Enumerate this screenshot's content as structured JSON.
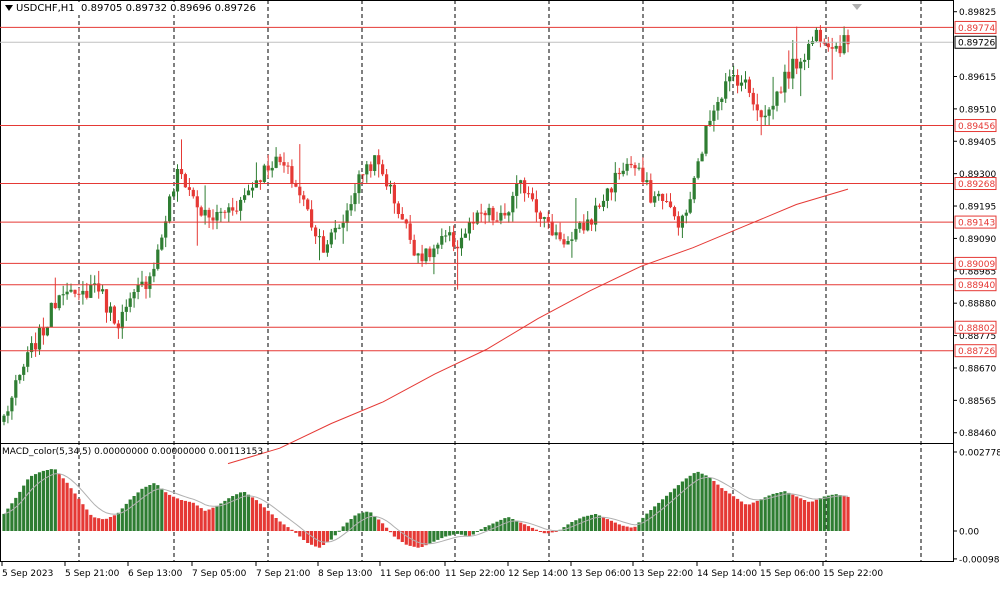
{
  "header": {
    "symbol_label": "USDCHF,H1",
    "ohlc": "0.89705 0.89732 0.89696 0.89726"
  },
  "macd": {
    "label": "MACD_color(5,34,5) 0.00000000 0.00000000 0.00113153"
  },
  "colors": {
    "bull": "#2e7d32",
    "bear": "#e53935",
    "level": "#e53935",
    "ma": "#e53935",
    "grid": "#000000",
    "signal": "#b0b0b0"
  },
  "price_scale": {
    "ticks": [
      "0.89825",
      "0.89615",
      "0.89510",
      "0.89405",
      "0.89300",
      "0.89195",
      "0.89090",
      "0.88985",
      "0.88880",
      "0.88775",
      "0.88670",
      "0.88565",
      "0.88460"
    ],
    "current_price": "0.89726"
  },
  "macd_scale": {
    "ticks": [
      "0.00277853",
      "0.00",
      "-0.00098104"
    ]
  },
  "levels": [
    "0.89774",
    "0.89456",
    "0.89268",
    "0.89143",
    "0.89009",
    "0.88940",
    "0.88802",
    "0.88726"
  ],
  "time_axis": [
    "5 Sep 2023",
    "5 Sep 21:00",
    "6 Sep 13:00",
    "7 Sep 05:00",
    "7 Sep 21:00",
    "8 Sep 13:00",
    "11 Sep 06:00",
    "11 Sep 22:00",
    "12 Sep 14:00",
    "13 Sep 06:00",
    "13 Sep 22:00",
    "14 Sep 14:00",
    "15 Sep 06:00",
    "15 Sep 22:00"
  ],
  "chart_data": {
    "type": "candlestick",
    "symbol": "USDCHF",
    "timeframe": "H1",
    "ylim": [
      0.8843,
      0.8985
    ],
    "close_path": [
      0.8851,
      0.8859,
      0.8868,
      0.8875,
      0.888,
      0.8889,
      0.8895,
      0.8888,
      0.8892,
      0.8895,
      0.8887,
      0.8882,
      0.8886,
      0.8892,
      0.8896,
      0.8905,
      0.892,
      0.8931,
      0.8925,
      0.8918,
      0.8915,
      0.8917,
      0.8919,
      0.8921,
      0.8926,
      0.893,
      0.8934,
      0.8933,
      0.8928,
      0.8922,
      0.8913,
      0.8907,
      0.891,
      0.8915,
      0.8924,
      0.8932,
      0.8934,
      0.8929,
      0.8921,
      0.8913,
      0.8905,
      0.8903,
      0.8906,
      0.8909,
      0.8907,
      0.8912,
      0.8915,
      0.8917,
      0.8914,
      0.8918,
      0.8926,
      0.8925,
      0.8918,
      0.8912,
      0.891,
      0.8907,
      0.8912,
      0.8915,
      0.8921,
      0.8926,
      0.8932,
      0.8933,
      0.8928,
      0.8922,
      0.8923,
      0.8916,
      0.8914,
      0.8926,
      0.8941,
      0.8953,
      0.8958,
      0.8962,
      0.8959,
      0.8953,
      0.8948,
      0.8955,
      0.8962,
      0.8966,
      0.897,
      0.8976,
      0.8974,
      0.8971,
      0.8973
    ],
    "ma_path": [
      0.8836,
      0.8841,
      0.8849,
      0.8856,
      0.8865,
      0.8873,
      0.8883,
      0.8892,
      0.89,
      0.8906,
      0.8913,
      0.892,
      0.8925
    ],
    "macd_path": [
      0.0006,
      0.0012,
      0.0019,
      0.0021,
      0.0022,
      0.0017,
      0.0011,
      0.0005,
      0.0004,
      0.0006,
      0.0011,
      0.0015,
      0.0017,
      0.0013,
      0.0011,
      0.001,
      0.0007,
      0.0009,
      0.0012,
      0.0014,
      0.0011,
      0.0007,
      0.0003,
      0.0,
      -0.0004,
      -0.0006,
      -0.0003,
      0.0002,
      0.0006,
      0.0007,
      0.0003,
      -0.0002,
      -0.0005,
      -0.0006,
      -0.0004,
      -0.0002,
      -0.0001,
      -0.0002,
      0.0001,
      0.0003,
      0.0005,
      0.0003,
      0.0001,
      -0.0001,
      0.0,
      0.0003,
      0.0005,
      0.0006,
      0.0004,
      0.0002,
      0.0001,
      0.0006,
      0.001,
      0.0014,
      0.0018,
      0.0021,
      0.0019,
      0.0015,
      0.0012,
      0.0009,
      0.0011,
      0.0013,
      0.0014,
      0.0012,
      0.001,
      0.0012,
      0.0013,
      0.0012
    ]
  }
}
